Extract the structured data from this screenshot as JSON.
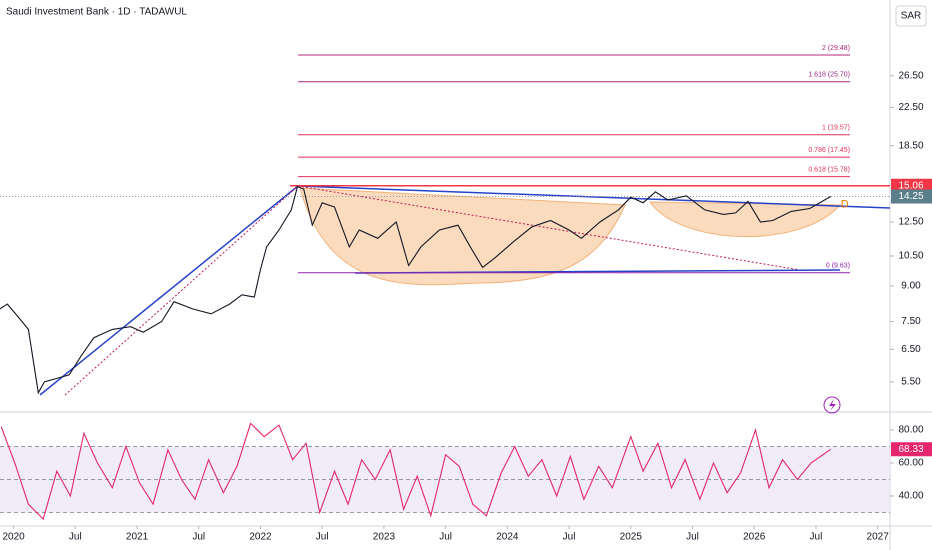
{
  "chart_data": {
    "type": "line",
    "title": "Saudi Investment Bank · 1D · TADAWUL",
    "currency": "SAR",
    "log_scale": true,
    "color": "#131722",
    "x": [
      2019.89,
      2019.95,
      2020.05,
      2020.12,
      2020.2,
      2020.25,
      2020.35,
      2020.45,
      2020.55,
      2020.65,
      2020.8,
      2020.95,
      2021.05,
      2021.2,
      2021.3,
      2021.45,
      2021.6,
      2021.75,
      2021.85,
      2021.95,
      2022.0,
      2022.05,
      2022.15,
      2022.25,
      2022.3,
      2022.35,
      2022.42,
      2022.5,
      2022.6,
      2022.72,
      2022.8,
      2022.95,
      2023.1,
      2023.2,
      2023.3,
      2023.45,
      2023.6,
      2023.7,
      2023.8,
      2023.9,
      2024.05,
      2024.2,
      2024.35,
      2024.5,
      2024.6,
      2024.75,
      2024.9,
      2025.0,
      2025.1,
      2025.2,
      2025.3,
      2025.45,
      2025.6,
      2025.75,
      2025.85,
      2025.95,
      2026.05,
      2026.15,
      2026.3,
      2026.45,
      2026.62
    ],
    "values": [
      8.0,
      8.2,
      7.6,
      7.2,
      5.2,
      5.5,
      5.6,
      5.7,
      6.3,
      6.9,
      7.2,
      7.3,
      7.1,
      7.5,
      8.3,
      8.0,
      7.8,
      8.2,
      8.6,
      8.5,
      9.8,
      11.0,
      12.0,
      13.3,
      15.0,
      14.8,
      12.3,
      13.8,
      13.5,
      11.0,
      12.0,
      11.5,
      12.5,
      10.0,
      11.0,
      12.0,
      12.3,
      11.0,
      9.9,
      10.4,
      11.3,
      12.2,
      12.6,
      12.0,
      11.5,
      12.5,
      13.3,
      14.2,
      13.8,
      14.6,
      14.0,
      14.3,
      13.3,
      13.0,
      13.1,
      13.9,
      12.5,
      12.6,
      13.2,
      13.4,
      14.25
    ],
    "xlim": [
      2019.89,
      2027.1
    ],
    "xticks": [
      {
        "value": 2020,
        "label": "2020"
      },
      {
        "value": 2020.5,
        "label": "Jul"
      },
      {
        "value": 2021,
        "label": "2021"
      },
      {
        "value": 2021.5,
        "label": "Jul"
      },
      {
        "value": 2022,
        "label": "2022"
      },
      {
        "value": 2022.5,
        "label": "Jul"
      },
      {
        "value": 2023,
        "label": "2023"
      },
      {
        "value": 2023.5,
        "label": "Jul"
      },
      {
        "value": 2024,
        "label": "2024"
      },
      {
        "value": 2024.5,
        "label": "Jul"
      },
      {
        "value": 2025,
        "label": "2025"
      },
      {
        "value": 2025.5,
        "label": "Jul"
      },
      {
        "value": 2026,
        "label": "2026"
      },
      {
        "value": 2026.5,
        "label": "Jul"
      },
      {
        "value": 2027,
        "label": "2027"
      }
    ],
    "ylim": [
      4.76,
      39.1
    ],
    "yticks": [
      {
        "value": 5.5,
        "label": "5.50"
      },
      {
        "value": 6.5,
        "label": "6.50"
      },
      {
        "value": 7.5,
        "label": "7.50"
      },
      {
        "value": 9,
        "label": "9.00"
      },
      {
        "value": 10.5,
        "label": "10.50"
      },
      {
        "value": 12.5,
        "label": "12.50"
      },
      {
        "value": 18.5,
        "label": "18.50"
      },
      {
        "value": 22.5,
        "label": "22.50"
      },
      {
        "value": 26.5,
        "label": "26.50"
      }
    ],
    "last_price_color": "#5b7f8a",
    "resistance": {
      "value": 15.06,
      "color": "#f23645"
    },
    "fib_levels": [
      {
        "label": "2 (29.48)",
        "value": 29.48,
        "color": "#b0287a"
      },
      {
        "label": "1.618 (25.70)",
        "value": 25.7,
        "color": "#9c2a8c"
      },
      {
        "label": "1 (19.57)",
        "value": 19.57,
        "color": "#e0305a"
      },
      {
        "label": "0.786 (17.45)",
        "value": 17.45,
        "color": "#e0305a"
      },
      {
        "label": "0.618 (15.78)",
        "value": 15.78,
        "color": "#e0305a"
      },
      {
        "label": "0 (9.63)",
        "value": 9.63,
        "color": "#8e24aa"
      }
    ],
    "annotation": "D",
    "rsi": {
      "type": "line",
      "color": "#e5266d",
      "x": [
        2019.9,
        2020.01,
        2020.12,
        2020.24,
        2020.35,
        2020.46,
        2020.57,
        2020.68,
        2020.8,
        2020.91,
        2021.02,
        2021.13,
        2021.25,
        2021.36,
        2021.47,
        2021.58,
        2021.7,
        2021.81,
        2021.92,
        2022.03,
        2022.15,
        2022.26,
        2022.37,
        2022.48,
        2022.6,
        2022.71,
        2022.82,
        2022.93,
        2023.05,
        2023.16,
        2023.27,
        2023.38,
        2023.5,
        2023.61,
        2023.72,
        2023.83,
        2023.95,
        2024.06,
        2024.17,
        2024.28,
        2024.4,
        2024.51,
        2024.62,
        2024.74,
        2024.85,
        2025.0,
        2025.1,
        2025.22,
        2025.33,
        2025.44,
        2025.56,
        2025.67,
        2025.78,
        2025.89,
        2026.01,
        2026.12,
        2026.23,
        2026.35,
        2026.46,
        2026.62
      ],
      "values": [
        82,
        60,
        35,
        26,
        55,
        40,
        78,
        60,
        45,
        70,
        48,
        35,
        68,
        50,
        38,
        62,
        42,
        58,
        84,
        76,
        83,
        62,
        72,
        30,
        55,
        35,
        62,
        50,
        68,
        32,
        52,
        28,
        65,
        58,
        35,
        28,
        54,
        70,
        52,
        62,
        40,
        64,
        38,
        58,
        45,
        76,
        55,
        72,
        45,
        62,
        38,
        60,
        42,
        54,
        80,
        45,
        62,
        50,
        60,
        68.33
      ],
      "ylim": [
        22.4,
        89.1
      ],
      "yticks": [
        {
          "value": 40,
          "label": "40.00"
        },
        {
          "value": 60,
          "label": "60.00"
        },
        {
          "value": 80,
          "label": "80.00"
        }
      ],
      "levels": [
        70,
        50,
        30
      ]
    }
  }
}
